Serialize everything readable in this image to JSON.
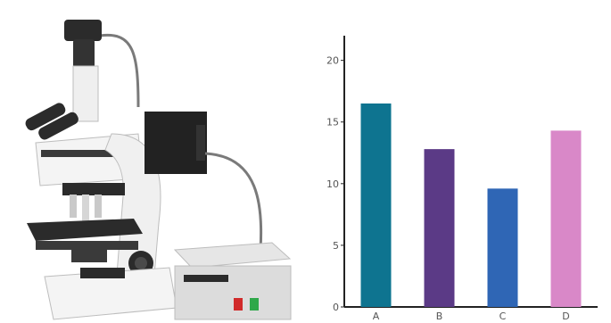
{
  "illustration": {
    "subject_icon": "microscope-with-camera-and-power-supply-icon",
    "colors": {
      "body": "#f2f2f2",
      "dark": "#2b2b2b",
      "cable": "#7a7a7a",
      "red_button": "#d12a2a",
      "green_button": "#2fa84a"
    }
  },
  "chart_data": {
    "type": "bar",
    "categories": [
      "A",
      "B",
      "C",
      "D"
    ],
    "values": [
      16.5,
      12.8,
      9.6,
      14.3
    ],
    "colors": [
      "#0e7490",
      "#5b3a86",
      "#2f66b5",
      "#d988c8"
    ],
    "ylim": [
      0,
      22
    ],
    "yticks": [
      0,
      5,
      10,
      15,
      20
    ],
    "title": "",
    "xlabel": "",
    "ylabel": "",
    "grid": false,
    "legend": false
  }
}
